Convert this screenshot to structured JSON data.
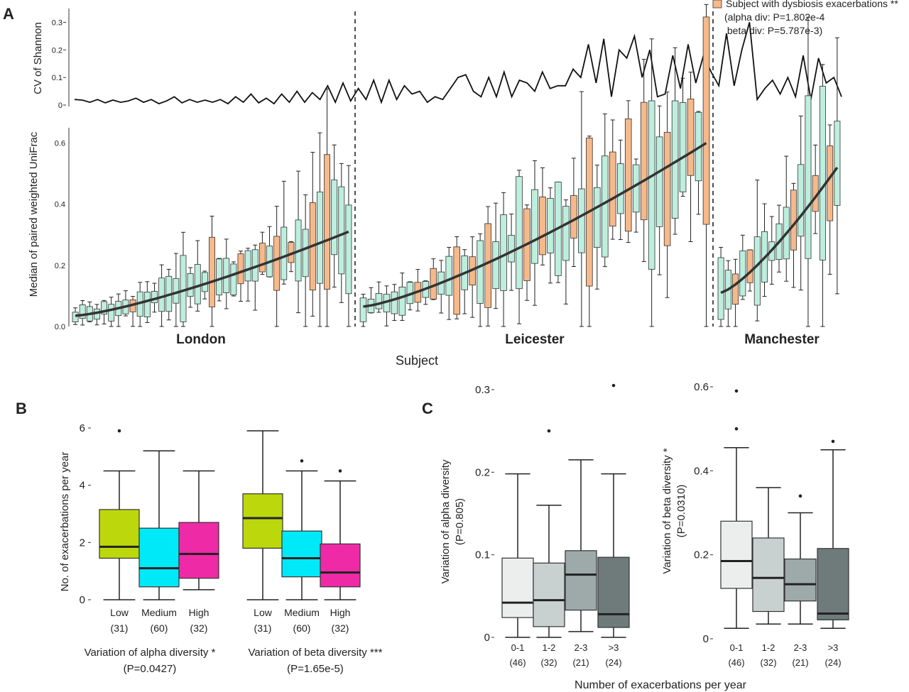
{
  "panels": {
    "a": "A",
    "b": "B",
    "c": "C"
  },
  "legend": {
    "label": "Subject with dysbiosis exacerbations **",
    "alpha": "(alpha div: P=1.802e-4",
    "beta": " beta div: P=5.787e-3)"
  },
  "colors": {
    "orange": "#f6b98a",
    "teal": "#bdeede",
    "lime": "#bcd80c",
    "cyan": "#00e9f8",
    "magenta": "#ee2aa6",
    "grey1": "#eceeee",
    "grey2": "#c9d0d0",
    "grey3": "#9eaaaa",
    "grey4": "#6f7b7b"
  },
  "chart_data": [
    {
      "type": "line",
      "ylabel": "CV of Shannon",
      "ylim": [
        0,
        0.35
      ],
      "yticks": [
        "0",
        "0.1",
        "0.2",
        "0.3"
      ],
      "y": [
        0.02,
        0.018,
        0.01,
        0.02,
        0.008,
        0.018,
        0.01,
        0.015,
        0.025,
        0.01,
        0.02,
        0.005,
        0.015,
        0.03,
        0.008,
        0.02,
        0.01,
        0.018,
        0.01,
        0.02,
        0.005,
        0.03,
        0.01,
        0.04,
        0.008,
        0.025,
        0.005,
        0.04,
        0.01,
        0.05,
        0.01,
        0.045,
        0.02,
        0.07,
        0.01,
        0.08,
        0.015,
        0.06,
        0.02,
        0.09,
        0.01,
        0.09,
        0.02,
        0.07,
        0.04,
        0.05,
        0.01,
        0.03,
        0.02,
        0.06,
        0.1,
        0.11,
        0.05,
        0.03,
        0.1,
        0.03,
        0.12,
        0.03,
        0.09,
        0.08,
        0.05,
        0.12,
        0.06,
        0.07,
        0.07,
        0.13,
        0.1,
        0.22,
        0.08,
        0.24,
        0.03,
        0.2,
        0.17,
        0.25,
        0.1,
        0.2,
        0.03,
        0.04,
        0.18,
        0.06,
        0.22,
        0.08,
        0.18,
        0.12,
        0.07,
        0.26,
        0.07,
        0.2,
        0.3,
        0.02,
        0.06,
        0.09,
        0.04,
        0.1,
        0.03,
        0.18,
        0.02,
        0.17,
        0.08,
        0.1,
        0.03
      ],
      "subjects": [
        "London",
        "Leicester",
        "Manchester"
      ],
      "xlabel": "Subject"
    },
    {
      "type": "box",
      "ylabel": "Median of paired weighted UniFrac",
      "ylim": [
        0,
        0.65
      ],
      "yticks": [
        "0.0",
        "0.2",
        "0.4",
        "0.6"
      ],
      "groups": [
        "London",
        "Leicester",
        "Manchester"
      ],
      "group_sizes": [
        39,
        45,
        17
      ],
      "medians_start": [
        0.035,
        0.065,
        0.11
      ],
      "medians_end": [
        0.31,
        0.6,
        0.52
      ],
      "orange_subjects": [
        8,
        19,
        23,
        26,
        28,
        30,
        33,
        35,
        46,
        48,
        51,
        53,
        55,
        60,
        62,
        66,
        68,
        71,
        73,
        75,
        78,
        81,
        83,
        86,
        88,
        94,
        97,
        99
      ]
    },
    {
      "type": "box",
      "ylabel": "No. of exacerbations per year",
      "ylim": [
        0,
        6.5
      ],
      "yticks": [
        "0",
        "2",
        "4",
        "6"
      ],
      "groups": [
        {
          "title": "Variation of alpha diversity *",
          "pvalue": "(P=0.0427)",
          "boxes": [
            {
              "label": "Low",
              "n": "(31)",
              "min": 0,
              "q1": 1.45,
              "median": 1.85,
              "q3": 3.15,
              "max": 4.5,
              "outliers": [
                5.9
              ]
            },
            {
              "label": "Medium",
              "n": "(60)",
              "min": 0,
              "q1": 0.45,
              "median": 1.1,
              "q3": 2.5,
              "max": 5.2,
              "outliers": []
            },
            {
              "label": "High",
              "n": "(32)",
              "min": 0.35,
              "q1": 0.75,
              "median": 1.6,
              "q3": 2.7,
              "max": 4.5,
              "outliers": []
            }
          ]
        },
        {
          "title": "Variation of beta diversity ***",
          "pvalue": "(P=1.65e-5)",
          "boxes": [
            {
              "label": "Low",
              "n": "(31)",
              "min": 0,
              "q1": 1.8,
              "median": 2.85,
              "q3": 3.7,
              "max": 5.9,
              "outliers": []
            },
            {
              "label": "Medium",
              "n": "(60)",
              "min": 0,
              "q1": 0.8,
              "median": 1.45,
              "q3": 2.4,
              "max": 4.5,
              "outliers": [
                4.85
              ]
            },
            {
              "label": "High",
              "n": "(32)",
              "min": 0,
              "q1": 0.45,
              "median": 0.95,
              "q3": 1.95,
              "max": 4.15,
              "outliers": [
                4.5
              ]
            }
          ]
        }
      ]
    },
    {
      "type": "box",
      "ylabel": "Variation of alpha diversity",
      "ylabel2": "(P=0.805)",
      "ylim": [
        0,
        0.32
      ],
      "yticks": [
        "0",
        "0.1",
        "0.2",
        "0.3"
      ],
      "xlabel": "Number of exacerbations per year",
      "boxes": [
        {
          "label": "0-1",
          "n": "(46)",
          "min": 0,
          "q1": 0.024,
          "median": 0.042,
          "q3": 0.096,
          "max": 0.198,
          "outliers": []
        },
        {
          "label": "1-2",
          "n": "(32)",
          "min": 0,
          "q1": 0.013,
          "median": 0.045,
          "q3": 0.09,
          "max": 0.16,
          "outliers": [
            0.25
          ]
        },
        {
          "label": "2-3",
          "n": "(21)",
          "min": 0.007,
          "q1": 0.033,
          "median": 0.076,
          "q3": 0.105,
          "max": 0.215,
          "outliers": []
        },
        {
          "label": ">3",
          "n": "(24)",
          "min": 0,
          "q1": 0.012,
          "median": 0.028,
          "q3": 0.097,
          "max": 0.198,
          "outliers": [
            0.305
          ]
        }
      ]
    },
    {
      "type": "box",
      "ylabel": "Variation of beta diversity *",
      "ylabel2": "(P=0.0310)",
      "ylim": [
        0,
        0.63
      ],
      "yticks": [
        "0",
        "0.2",
        "0.4",
        "0.6"
      ],
      "boxes": [
        {
          "label": "0-1",
          "n": "(46)",
          "min": 0.025,
          "q1": 0.12,
          "median": 0.185,
          "q3": 0.28,
          "max": 0.455,
          "outliers": [
            0.5,
            0.59
          ]
        },
        {
          "label": "1-2",
          "n": "(32)",
          "min": 0.035,
          "q1": 0.065,
          "median": 0.145,
          "q3": 0.24,
          "max": 0.36,
          "outliers": []
        },
        {
          "label": "2-3",
          "n": "(21)",
          "min": 0.035,
          "q1": 0.09,
          "median": 0.13,
          "q3": 0.19,
          "max": 0.3,
          "outliers": [
            0.34
          ]
        },
        {
          "label": ">3",
          "n": "(24)",
          "min": 0.025,
          "q1": 0.045,
          "median": 0.06,
          "q3": 0.215,
          "max": 0.45,
          "outliers": [
            0.47
          ]
        }
      ]
    }
  ]
}
